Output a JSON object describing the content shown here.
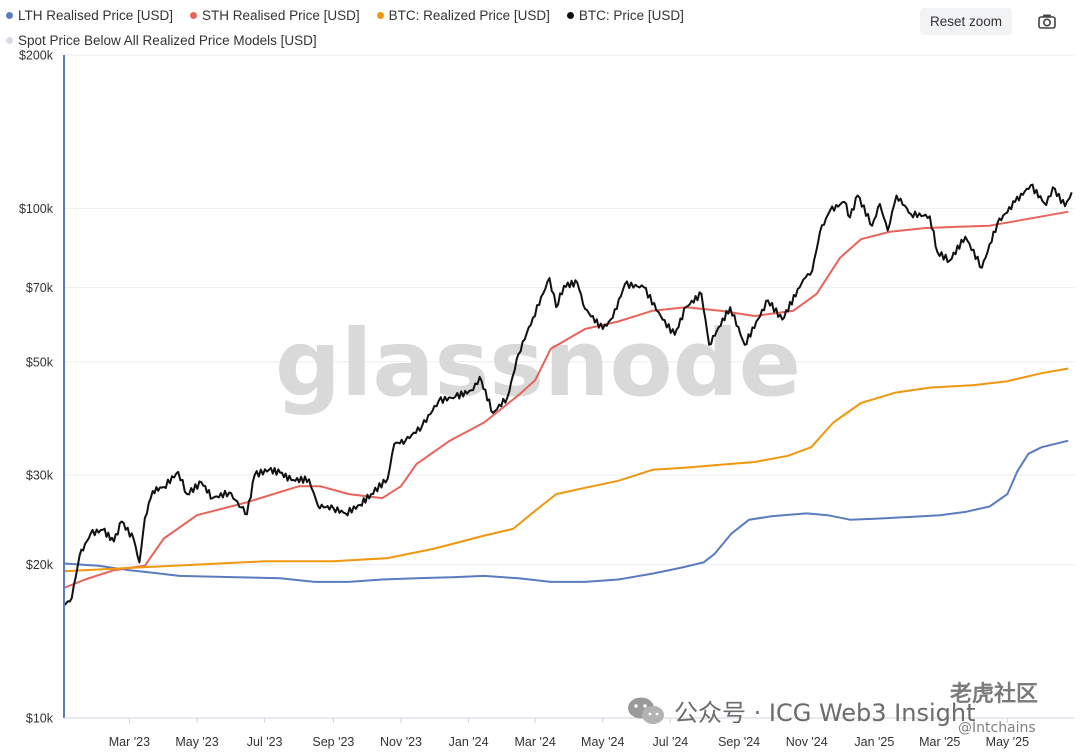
{
  "legend": {
    "row1": [
      {
        "label": "LTH Realised Price [USD]",
        "color": "#5b7bbf"
      },
      {
        "label": "STH Realised Price [USD]",
        "color": "#e8635a"
      },
      {
        "label": "BTC: Realized Price [USD]",
        "color": "#f0960f"
      },
      {
        "label": "BTC: Price [USD]",
        "color": "#111111"
      }
    ],
    "row2": [
      {
        "label": "Spot Price Below All Realized Price Models [USD]",
        "color": "#d6dbe6"
      }
    ]
  },
  "toolbar": {
    "reset_zoom_label": "Reset zoom",
    "camera_icon": "camera-icon"
  },
  "watermarks": {
    "brand": "glassnode",
    "wechat_text": "公众号 · ICG Web3 Insight",
    "community_text": "老虎社区",
    "handle_text": "@Intchains"
  },
  "chart_data": {
    "type": "line",
    "y_scale": "log",
    "ylim": [
      10000,
      200000
    ],
    "y_ticks": [
      {
        "value": 10000,
        "label": "$10k"
      },
      {
        "value": 20000,
        "label": "$20k"
      },
      {
        "value": 30000,
        "label": "$30k"
      },
      {
        "value": 50000,
        "label": "$50k"
      },
      {
        "value": 70000,
        "label": "$70k"
      },
      {
        "value": 100000,
        "label": "$100k"
      },
      {
        "value": 200000,
        "label": "$200k"
      }
    ],
    "x_range": [
      "2023-01-01",
      "2025-07-01"
    ],
    "x_ticks": [
      {
        "date": "2023-03-01",
        "label": "Mar '23"
      },
      {
        "date": "2023-05-01",
        "label": "May '23"
      },
      {
        "date": "2023-07-01",
        "label": "Jul '23"
      },
      {
        "date": "2023-09-01",
        "label": "Sep '23"
      },
      {
        "date": "2023-11-01",
        "label": "Nov '23"
      },
      {
        "date": "2024-01-01",
        "label": "Jan '24"
      },
      {
        "date": "2024-03-01",
        "label": "Mar '24"
      },
      {
        "date": "2024-05-01",
        "label": "May '24"
      },
      {
        "date": "2024-07-01",
        "label": "Jul '24"
      },
      {
        "date": "2024-09-01",
        "label": "Sep '24"
      },
      {
        "date": "2024-11-01",
        "label": "Nov '24"
      },
      {
        "date": "2025-01-01",
        "label": "Jan '25"
      },
      {
        "date": "2025-03-01",
        "label": "Mar '25"
      },
      {
        "date": "2025-05-01",
        "label": "May '25"
      }
    ],
    "grid": true,
    "legend_position": "top-left",
    "series": [
      {
        "name": "LTH Realised Price [USD]",
        "color": "#5b7bbf",
        "points": [
          [
            "2023-01-01",
            20100
          ],
          [
            "2023-02-01",
            19900
          ],
          [
            "2023-03-01",
            19500
          ],
          [
            "2023-03-20",
            19300
          ],
          [
            "2023-04-15",
            19000
          ],
          [
            "2023-06-01",
            18900
          ],
          [
            "2023-07-15",
            18800
          ],
          [
            "2023-08-15",
            18500
          ],
          [
            "2023-09-15",
            18500
          ],
          [
            "2023-10-15",
            18700
          ],
          [
            "2023-11-15",
            18800
          ],
          [
            "2023-12-20",
            18900
          ],
          [
            "2024-01-15",
            19000
          ],
          [
            "2024-02-15",
            18800
          ],
          [
            "2024-03-15",
            18500
          ],
          [
            "2024-04-15",
            18500
          ],
          [
            "2024-05-15",
            18700
          ],
          [
            "2024-06-15",
            19200
          ],
          [
            "2024-07-10",
            19700
          ],
          [
            "2024-07-31",
            20200
          ],
          [
            "2024-08-10",
            21000
          ],
          [
            "2024-08-25",
            23000
          ],
          [
            "2024-09-10",
            24500
          ],
          [
            "2024-10-01",
            24900
          ],
          [
            "2024-11-01",
            25200
          ],
          [
            "2024-11-20",
            25000
          ],
          [
            "2024-12-10",
            24500
          ],
          [
            "2025-01-01",
            24600
          ],
          [
            "2025-02-01",
            24800
          ],
          [
            "2025-03-01",
            25000
          ],
          [
            "2025-03-25",
            25400
          ],
          [
            "2025-04-15",
            26000
          ],
          [
            "2025-05-01",
            27500
          ],
          [
            "2025-05-10",
            30500
          ],
          [
            "2025-05-20",
            33000
          ],
          [
            "2025-06-01",
            34000
          ],
          [
            "2025-06-25",
            35000
          ]
        ]
      },
      {
        "name": "STH Realised Price [USD]",
        "color": "#e8635a",
        "points": [
          [
            "2023-01-01",
            18000
          ],
          [
            "2023-01-20",
            18700
          ],
          [
            "2023-02-15",
            19500
          ],
          [
            "2023-03-15",
            19900
          ],
          [
            "2023-04-01",
            22500
          ],
          [
            "2023-05-01",
            25000
          ],
          [
            "2023-06-15",
            26500
          ],
          [
            "2023-08-01",
            28500
          ],
          [
            "2023-08-20",
            28500
          ],
          [
            "2023-09-15",
            27500
          ],
          [
            "2023-10-15",
            27000
          ],
          [
            "2023-11-01",
            28500
          ],
          [
            "2023-11-15",
            31500
          ],
          [
            "2023-12-15",
            35000
          ],
          [
            "2024-01-15",
            38000
          ],
          [
            "2024-02-15",
            43000
          ],
          [
            "2024-03-01",
            46000
          ],
          [
            "2024-03-15",
            53000
          ],
          [
            "2024-04-15",
            58000
          ],
          [
            "2024-05-15",
            60000
          ],
          [
            "2024-06-15",
            63000
          ],
          [
            "2024-07-15",
            64000
          ],
          [
            "2024-08-15",
            63000
          ],
          [
            "2024-09-15",
            61500
          ],
          [
            "2024-10-20",
            63000
          ],
          [
            "2024-11-10",
            68000
          ],
          [
            "2024-12-01",
            80000
          ],
          [
            "2024-12-20",
            87000
          ],
          [
            "2025-01-15",
            90000
          ],
          [
            "2025-02-15",
            91500
          ],
          [
            "2025-03-15",
            92000
          ],
          [
            "2025-04-15",
            92500
          ],
          [
            "2025-05-15",
            95000
          ],
          [
            "2025-06-25",
            98500
          ]
        ]
      },
      {
        "name": "BTC: Realized Price [USD]",
        "color": "#f0960f",
        "points": [
          [
            "2023-01-01",
            19400
          ],
          [
            "2023-03-01",
            19700
          ],
          [
            "2023-05-01",
            20000
          ],
          [
            "2023-07-01",
            20300
          ],
          [
            "2023-09-01",
            20300
          ],
          [
            "2023-10-20",
            20600
          ],
          [
            "2023-12-01",
            21500
          ],
          [
            "2024-01-15",
            22800
          ],
          [
            "2024-02-10",
            23500
          ],
          [
            "2024-03-01",
            25500
          ],
          [
            "2024-03-20",
            27500
          ],
          [
            "2024-04-15",
            28300
          ],
          [
            "2024-05-15",
            29200
          ],
          [
            "2024-06-15",
            30700
          ],
          [
            "2024-07-15",
            31000
          ],
          [
            "2024-08-15",
            31400
          ],
          [
            "2024-09-15",
            31800
          ],
          [
            "2024-10-15",
            32700
          ],
          [
            "2024-11-05",
            34000
          ],
          [
            "2024-11-25",
            38000
          ],
          [
            "2024-12-20",
            41500
          ],
          [
            "2025-01-20",
            43500
          ],
          [
            "2025-02-20",
            44500
          ],
          [
            "2025-04-01",
            45000
          ],
          [
            "2025-05-01",
            45800
          ],
          [
            "2025-06-01",
            47500
          ],
          [
            "2025-06-25",
            48500
          ]
        ]
      },
      {
        "name": "BTC: Price [USD]",
        "color": "#111111",
        "points": [
          [
            "2023-01-01",
            16600
          ],
          [
            "2023-01-08",
            17200
          ],
          [
            "2023-01-15",
            20800
          ],
          [
            "2023-01-25",
            23000
          ],
          [
            "2023-02-05",
            23400
          ],
          [
            "2023-02-15",
            22200
          ],
          [
            "2023-02-22",
            24300
          ],
          [
            "2023-03-05",
            22400
          ],
          [
            "2023-03-10",
            20200
          ],
          [
            "2023-03-15",
            24700
          ],
          [
            "2023-03-22",
            27900
          ],
          [
            "2023-04-01",
            28400
          ],
          [
            "2023-04-14",
            30400
          ],
          [
            "2023-04-22",
            27500
          ],
          [
            "2023-05-05",
            29000
          ],
          [
            "2023-05-15",
            27000
          ],
          [
            "2023-05-30",
            27700
          ],
          [
            "2023-06-10",
            25900
          ],
          [
            "2023-06-15",
            25100
          ],
          [
            "2023-06-22",
            30000
          ],
          [
            "2023-07-05",
            30700
          ],
          [
            "2023-07-15",
            30300
          ],
          [
            "2023-07-25",
            29300
          ],
          [
            "2023-08-10",
            29400
          ],
          [
            "2023-08-18",
            26100
          ],
          [
            "2023-09-01",
            25800
          ],
          [
            "2023-09-12",
            25200
          ],
          [
            "2023-09-25",
            26200
          ],
          [
            "2023-10-05",
            27500
          ],
          [
            "2023-10-20",
            29500
          ],
          [
            "2023-10-26",
            34500
          ],
          [
            "2023-11-05",
            35000
          ],
          [
            "2023-11-20",
            37400
          ],
          [
            "2023-12-05",
            41900
          ],
          [
            "2023-12-20",
            42700
          ],
          [
            "2024-01-05",
            44000
          ],
          [
            "2024-01-11",
            46700
          ],
          [
            "2024-01-23",
            39700
          ],
          [
            "2024-02-05",
            42600
          ],
          [
            "2024-02-15",
            51800
          ],
          [
            "2024-02-28",
            61000
          ],
          [
            "2024-03-14",
            73000
          ],
          [
            "2024-03-20",
            64000
          ],
          [
            "2024-03-27",
            70500
          ],
          [
            "2024-04-08",
            71500
          ],
          [
            "2024-04-15",
            63500
          ],
          [
            "2024-05-01",
            58000
          ],
          [
            "2024-05-10",
            61000
          ],
          [
            "2024-05-21",
            71000
          ],
          [
            "2024-06-07",
            70000
          ],
          [
            "2024-06-24",
            60500
          ],
          [
            "2024-07-05",
            56500
          ],
          [
            "2024-07-15",
            64000
          ],
          [
            "2024-07-29",
            68000
          ],
          [
            "2024-08-05",
            54000
          ],
          [
            "2024-08-24",
            64000
          ],
          [
            "2024-09-06",
            54000
          ],
          [
            "2024-09-27",
            66000
          ],
          [
            "2024-10-10",
            60500
          ],
          [
            "2024-10-29",
            72500
          ],
          [
            "2024-11-06",
            75500
          ],
          [
            "2024-11-13",
            90000
          ],
          [
            "2024-11-22",
            99000
          ],
          [
            "2024-12-05",
            103000
          ],
          [
            "2024-12-10",
            96000
          ],
          [
            "2024-12-17",
            106000
          ],
          [
            "2024-12-30",
            92500
          ],
          [
            "2025-01-06",
            102000
          ],
          [
            "2025-01-13",
            90500
          ],
          [
            "2025-01-21",
            106000
          ],
          [
            "2025-02-03",
            97500
          ],
          [
            "2025-02-20",
            96500
          ],
          [
            "2025-02-27",
            82000
          ],
          [
            "2025-03-10",
            79000
          ],
          [
            "2025-03-24",
            88000
          ],
          [
            "2025-04-08",
            76500
          ],
          [
            "2025-04-22",
            93500
          ],
          [
            "2025-05-08",
            103000
          ],
          [
            "2025-05-22",
            111000
          ],
          [
            "2025-06-05",
            101500
          ],
          [
            "2025-06-11",
            110000
          ],
          [
            "2025-06-22",
            101000
          ],
          [
            "2025-06-28",
            107500
          ]
        ]
      }
    ]
  }
}
